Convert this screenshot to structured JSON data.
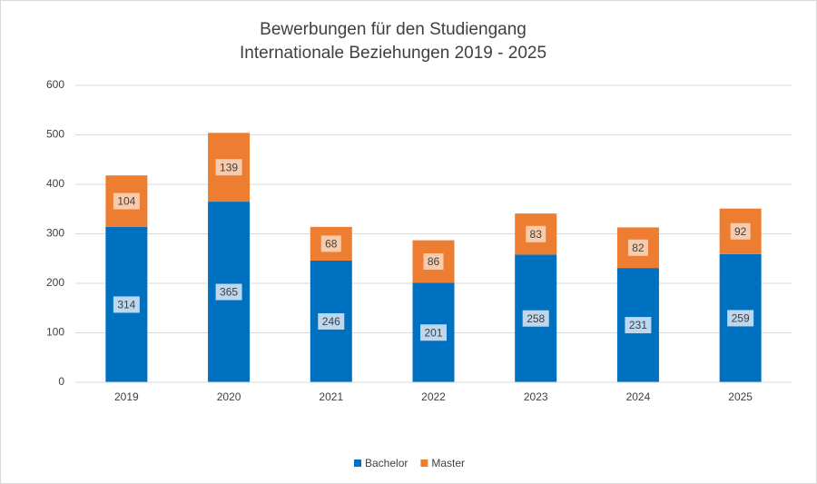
{
  "chart_data": {
    "type": "bar",
    "stacked": true,
    "title": "Bewerbungen für den Studiengang",
    "subtitle": "Internationale Beziehungen 2019 - 2025",
    "categories": [
      "2019",
      "2020",
      "2021",
      "2022",
      "2023",
      "2024",
      "2025"
    ],
    "series": [
      {
        "name": "Bachelor",
        "color": "#0070c0",
        "values": [
          314,
          365,
          246,
          201,
          258,
          231,
          259
        ]
      },
      {
        "name": "Master",
        "color": "#ed7d31",
        "values": [
          104,
          139,
          68,
          86,
          83,
          82,
          92
        ]
      }
    ],
    "ylim": [
      0,
      600
    ],
    "yticks": [
      0,
      100,
      200,
      300,
      400,
      500,
      600
    ],
    "grid": true,
    "legend": "bottom"
  }
}
